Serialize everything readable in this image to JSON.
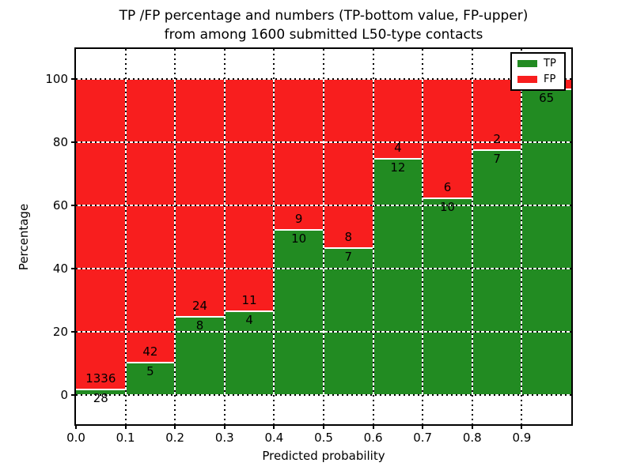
{
  "title": {
    "line1": "TP /FP percentage and numbers (TP-bottom value, FP-upper)",
    "line2": "from among 1600 submitted L50-type contacts"
  },
  "axes": {
    "xlabel": "Predicted probability",
    "ylabel": "Percentage",
    "xtick_labels": [
      "0.0",
      "0.1",
      "0.2",
      "0.3",
      "0.4",
      "0.5",
      "0.6",
      "0.7",
      "0.8",
      "0.9"
    ],
    "ytick_labels": [
      "0",
      "20",
      "40",
      "60",
      "80",
      "100"
    ]
  },
  "legend": [
    {
      "label": "TP",
      "color": "#228b22"
    },
    {
      "label": "FP",
      "color": "#f81e1e"
    }
  ],
  "chart_data": {
    "type": "bar",
    "stacked": true,
    "normalized_to_percent": true,
    "title": "TP /FP percentage and numbers (TP-bottom value, FP-upper) from among 1600 submitted L50-type contacts",
    "xlabel": "Predicted probability",
    "ylabel": "Percentage",
    "x_bin_edges": [
      0.0,
      0.1,
      0.2,
      0.3,
      0.4,
      0.5,
      0.6,
      0.7,
      0.8,
      0.9,
      1.0
    ],
    "xlim": [
      0,
      1
    ],
    "ylim": [
      -10,
      110
    ],
    "ytick_values": [
      0,
      20,
      40,
      60,
      80,
      100
    ],
    "grid": true,
    "legend_position": "upper-right",
    "series": [
      {
        "name": "TP",
        "color": "#228b22",
        "counts": [
          28,
          5,
          8,
          4,
          10,
          7,
          12,
          10,
          7,
          65
        ],
        "percent": [
          2.1,
          10.6,
          25.0,
          26.7,
          52.6,
          46.7,
          75.0,
          62.5,
          77.8,
          97.0
        ]
      },
      {
        "name": "FP",
        "color": "#f81e1e",
        "counts": [
          1336,
          42,
          24,
          11,
          9,
          8,
          4,
          6,
          2,
          null
        ],
        "percent": [
          97.9,
          89.4,
          75.0,
          73.3,
          47.4,
          53.3,
          25.0,
          37.5,
          22.2,
          3.0
        ]
      }
    ],
    "tp_count_labels": [
      "28",
      "5",
      "8",
      "4",
      "10",
      "7",
      "12",
      "10",
      "7",
      "65"
    ],
    "fp_count_labels": [
      "1336",
      "42",
      "24",
      "11",
      "9",
      "8",
      "4",
      "6",
      "2",
      ""
    ]
  }
}
